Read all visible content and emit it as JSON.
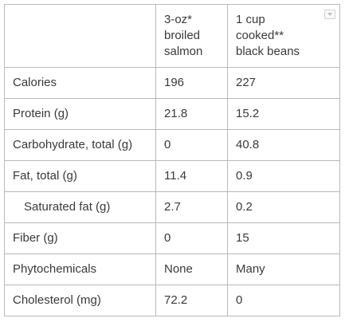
{
  "table": {
    "header": {
      "empty": "",
      "col_a": [
        "3-oz*",
        "broiled",
        "salmon"
      ],
      "col_b": [
        "1 cup",
        "cooked**",
        "black beans"
      ]
    },
    "rows": [
      {
        "label": "Calories",
        "a": "196",
        "b": "227"
      },
      {
        "label": "Protein (g)",
        "a": "21.8",
        "b": "15.2"
      },
      {
        "label": "Carbohydrate, total (g)",
        "a": "0",
        "b": "40.8"
      },
      {
        "label": "Fat, total (g)",
        "a": "11.4",
        "b": "0.9"
      },
      {
        "label": "Saturated fat (g)",
        "a": "2.7",
        "b": "0.2"
      },
      {
        "label": "Fiber (g)",
        "a": "0",
        "b": "15"
      },
      {
        "label": "Phytochemicals",
        "a": "None",
        "b": "Many"
      },
      {
        "label": "Cholesterol (mg)",
        "a": "72.2",
        "b": "0"
      }
    ]
  },
  "icons": {
    "column_menu": "chevron-down-icon"
  }
}
